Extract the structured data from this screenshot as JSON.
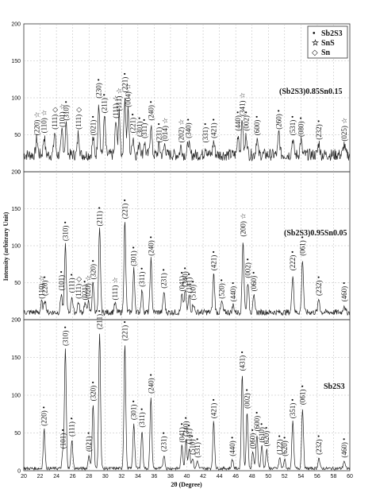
{
  "chart_data": {
    "type": "line",
    "xlabel": "2θ (Degree)",
    "ylabel": "Intensity (arbitrary Unit)",
    "xlim": [
      20,
      60
    ],
    "x_ticks": [
      "20",
      "22",
      "24",
      "26",
      "28",
      "30",
      "32",
      "34",
      "36",
      "38",
      "40",
      "42",
      "44",
      "46",
      "48",
      "50",
      "52",
      "54",
      "56",
      "58",
      "60"
    ],
    "grid": "dashed vertical and horizontal",
    "legend_placement": "top-right",
    "legend": [
      {
        "marker": "•",
        "label": "Sb2S3"
      },
      {
        "marker": "☆",
        "label": "SnS"
      },
      {
        "marker": "◇",
        "label": "Sn"
      }
    ],
    "panels": [
      {
        "title": "(Sb2S3)0.85Sn0.15",
        "ylim": [
          0,
          200
        ],
        "y_ticks": [
          "0",
          "50",
          "100",
          "150",
          "200"
        ],
        "baseline": 23,
        "peaks": [
          {
            "x": 21.6,
            "h": 22,
            "label": "(220)",
            "marker": "☆"
          },
          {
            "x": 22.5,
            "h": 25,
            "label": "(110)",
            "marker": "☆"
          },
          {
            "x": 23.8,
            "h": 30,
            "label": "(111)",
            "marker": "◇"
          },
          {
            "x": 24.7,
            "h": 33,
            "label": "(101)",
            "marker": "☆"
          },
          {
            "x": 25.2,
            "h": 42,
            "label": "(310)",
            "marker": "•"
          },
          {
            "x": 26.7,
            "h": 30,
            "label": "(111)",
            "marker": "◇"
          },
          {
            "x": 28.5,
            "h": 22,
            "label": "(021)",
            "marker": "•"
          },
          {
            "x": 29.2,
            "h": 72,
            "label": "(230)",
            "marker": "•"
          },
          {
            "x": 29.9,
            "h": 52,
            "label": "(211)",
            "marker": "•"
          },
          {
            "x": 31.3,
            "h": 45,
            "label": "(111)",
            "marker": "☆"
          },
          {
            "x": 31.7,
            "h": 55,
            "label": "(111)",
            "marker": "☆"
          },
          {
            "x": 32.4,
            "h": 80,
            "label": "(221)",
            "marker": "•"
          },
          {
            "x": 32.8,
            "h": 60,
            "label": "(004)",
            "marker": "☆"
          },
          {
            "x": 33.4,
            "h": 25,
            "label": "(221)",
            "marker": "•"
          },
          {
            "x": 34.2,
            "h": 20,
            "label": "(301)",
            "marker": "•"
          },
          {
            "x": 34.8,
            "h": 18,
            "label": "(311)",
            "marker": "•"
          },
          {
            "x": 35.6,
            "h": 42,
            "label": "(240)",
            "marker": "•"
          },
          {
            "x": 36.6,
            "h": 12,
            "label": "(231)",
            "marker": "•"
          },
          {
            "x": 37.3,
            "h": 14,
            "label": "(014)",
            "marker": "☆"
          },
          {
            "x": 39.3,
            "h": 12,
            "label": "(202)",
            "marker": "☆"
          },
          {
            "x": 40.2,
            "h": 18,
            "label": "(340)",
            "marker": "•"
          },
          {
            "x": 42.3,
            "h": 12,
            "label": "(331)",
            "marker": "•"
          },
          {
            "x": 43.3,
            "h": 18,
            "label": "(421)",
            "marker": "•"
          },
          {
            "x": 46.3,
            "h": 28,
            "label": "(440)",
            "marker": "•"
          },
          {
            "x": 46.8,
            "h": 48,
            "label": "(341)",
            "marker": "☆"
          },
          {
            "x": 47.3,
            "h": 28,
            "label": "(002)",
            "marker": "•"
          },
          {
            "x": 48.6,
            "h": 22,
            "label": "(600)",
            "marker": "•"
          },
          {
            "x": 51.3,
            "h": 30,
            "label": "(260)",
            "marker": "•"
          },
          {
            "x": 53.0,
            "h": 22,
            "label": "(531)",
            "marker": "•"
          },
          {
            "x": 54.0,
            "h": 20,
            "label": "(080)",
            "marker": "•"
          },
          {
            "x": 56.2,
            "h": 16,
            "label": "(232)",
            "marker": "•"
          },
          {
            "x": 59.3,
            "h": 14,
            "label": "(025)",
            "marker": "☆"
          }
        ]
      },
      {
        "title": "(Sb2S3)0.95Sn0.05",
        "ylim": [
          0,
          200
        ],
        "y_ticks": [
          "0",
          "50",
          "100",
          "150",
          "200"
        ],
        "baseline": 10,
        "peaks": [
          {
            "x": 22.2,
            "h": 14,
            "label": "(110)",
            "marker": "☆"
          },
          {
            "x": 22.6,
            "h": 18,
            "label": "(220)",
            "marker": "•"
          },
          {
            "x": 24.6,
            "h": 25,
            "label": "(101)",
            "marker": "•"
          },
          {
            "x": 25.1,
            "h": 92,
            "label": "(310)",
            "marker": "•"
          },
          {
            "x": 25.9,
            "h": 22,
            "label": "(111)",
            "marker": "•"
          },
          {
            "x": 26.7,
            "h": 14,
            "label": "(111)",
            "marker": "◇"
          },
          {
            "x": 27.5,
            "h": 12,
            "label": "(021)",
            "marker": "•"
          },
          {
            "x": 27.9,
            "h": 14,
            "label": "(020)",
            "marker": "☆"
          },
          {
            "x": 28.5,
            "h": 40,
            "label": "(320)",
            "marker": "•"
          },
          {
            "x": 29.3,
            "h": 112,
            "label": "(211)",
            "marker": "•"
          },
          {
            "x": 31.2,
            "h": 12,
            "label": "(111)",
            "marker": "☆"
          },
          {
            "x": 32.4,
            "h": 122,
            "label": "(221)",
            "marker": "•"
          },
          {
            "x": 33.5,
            "h": 58,
            "label": "(301)",
            "marker": "•"
          },
          {
            "x": 34.5,
            "h": 30,
            "label": "(311)",
            "marker": "•"
          },
          {
            "x": 35.6,
            "h": 72,
            "label": "(240)",
            "marker": "•"
          },
          {
            "x": 37.2,
            "h": 28,
            "label": "(231)",
            "marker": "•"
          },
          {
            "x": 39.4,
            "h": 24,
            "label": "(041)",
            "marker": "•"
          },
          {
            "x": 39.8,
            "h": 30,
            "label": "(340)",
            "marker": "•"
          },
          {
            "x": 40.3,
            "h": 22,
            "label": "(141)",
            "marker": "•"
          },
          {
            "x": 40.8,
            "h": 12,
            "label": "(510)",
            "marker": "•"
          },
          {
            "x": 43.3,
            "h": 52,
            "label": "(421)",
            "marker": "•"
          },
          {
            "x": 44.3,
            "h": 14,
            "label": "(520)",
            "marker": "•"
          },
          {
            "x": 45.7,
            "h": 10,
            "label": "(440)",
            "marker": "•"
          },
          {
            "x": 46.9,
            "h": 98,
            "label": "(200)",
            "marker": "☆"
          },
          {
            "x": 47.5,
            "h": 42,
            "label": "(002)",
            "marker": "•"
          },
          {
            "x": 48.2,
            "h": 24,
            "label": "(060)",
            "marker": "•"
          },
          {
            "x": 53.0,
            "h": 52,
            "label": "(222)",
            "marker": "•"
          },
          {
            "x": 54.2,
            "h": 72,
            "label": "(061)",
            "marker": "•"
          },
          {
            "x": 56.2,
            "h": 18,
            "label": "(232)",
            "marker": "•"
          },
          {
            "x": 59.3,
            "h": 10,
            "label": "(460)",
            "marker": "•"
          }
        ]
      },
      {
        "title": "Sb2S3",
        "ylim": [
          0,
          200
        ],
        "y_ticks": [
          "0",
          "50",
          "100",
          "150",
          "200"
        ],
        "baseline": 3,
        "peaks": [
          {
            "x": 22.5,
            "h": 52,
            "label": "(220)",
            "marker": "•"
          },
          {
            "x": 24.8,
            "h": 22,
            "label": "(101)",
            "marker": "•"
          },
          {
            "x": 25.1,
            "h": 158,
            "label": "(310)",
            "marker": "•"
          },
          {
            "x": 25.9,
            "h": 38,
            "label": "(111)",
            "marker": "•"
          },
          {
            "x": 28.0,
            "h": 18,
            "label": "(021)",
            "marker": "•"
          },
          {
            "x": 28.5,
            "h": 85,
            "label": "(320)",
            "marker": "•"
          },
          {
            "x": 29.3,
            "h": 180,
            "label": "(211)",
            "marker": "•"
          },
          {
            "x": 32.4,
            "h": 165,
            "label": "(221)",
            "marker": "•"
          },
          {
            "x": 33.5,
            "h": 60,
            "label": "(301)",
            "marker": "•"
          },
          {
            "x": 34.5,
            "h": 50,
            "label": "(311)",
            "marker": "•"
          },
          {
            "x": 35.6,
            "h": 95,
            "label": "(240)",
            "marker": "•"
          },
          {
            "x": 37.2,
            "h": 18,
            "label": "(231)",
            "marker": "•"
          },
          {
            "x": 39.4,
            "h": 30,
            "label": "(041)",
            "marker": "•"
          },
          {
            "x": 39.9,
            "h": 38,
            "label": "(340)",
            "marker": "•"
          },
          {
            "x": 40.3,
            "h": 28,
            "label": "(141)",
            "marker": "•"
          },
          {
            "x": 40.7,
            "h": 14,
            "label": "(510)",
            "marker": "•"
          },
          {
            "x": 41.3,
            "h": 10,
            "label": "(331)",
            "marker": "•"
          },
          {
            "x": 43.3,
            "h": 62,
            "label": "(421)",
            "marker": "•"
          },
          {
            "x": 45.6,
            "h": 12,
            "label": "(440)",
            "marker": "•"
          },
          {
            "x": 46.8,
            "h": 125,
            "label": "(431)",
            "marker": "•"
          },
          {
            "x": 47.4,
            "h": 75,
            "label": "(002)",
            "marker": "•"
          },
          {
            "x": 48.1,
            "h": 22,
            "label": "(060)",
            "marker": "•"
          },
          {
            "x": 48.6,
            "h": 45,
            "label": "(600)",
            "marker": "•"
          },
          {
            "x": 49.2,
            "h": 30,
            "label": "(610)",
            "marker": "•"
          },
          {
            "x": 49.8,
            "h": 25,
            "label": "(620)",
            "marker": "•"
          },
          {
            "x": 51.4,
            "h": 14,
            "label": "(122)",
            "marker": "•"
          },
          {
            "x": 52.0,
            "h": 12,
            "label": "(620)",
            "marker": "•"
          },
          {
            "x": 53.0,
            "h": 62,
            "label": "(351)",
            "marker": "•"
          },
          {
            "x": 54.2,
            "h": 80,
            "label": "(061)",
            "marker": "•"
          },
          {
            "x": 56.2,
            "h": 14,
            "label": "(232)",
            "marker": "•"
          },
          {
            "x": 59.3,
            "h": 10,
            "label": "(460)",
            "marker": "•"
          }
        ]
      }
    ]
  }
}
